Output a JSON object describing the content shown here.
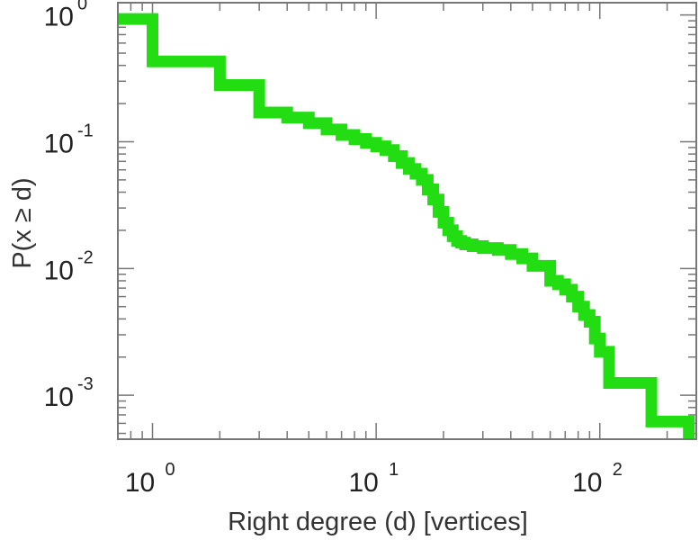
{
  "chart_data": {
    "type": "line",
    "step": true,
    "xscale": "log",
    "yscale": "log",
    "xlabel": "Right degree (d) [vertices]",
    "ylabel": "P(x ≥ d)",
    "xlim": [
      0.7,
      270
    ],
    "ylim": [
      0.00045,
      1.25
    ],
    "grid": false,
    "legend": "none",
    "color": "#22dd11",
    "x_ticks": [
      {
        "value": 1,
        "base": "10",
        "exp": "0"
      },
      {
        "value": 10,
        "base": "10",
        "exp": "1"
      },
      {
        "value": 100,
        "base": "10",
        "exp": "2"
      }
    ],
    "y_ticks": [
      {
        "value": 1,
        "base": "10",
        "exp": "0"
      },
      {
        "value": 0.1,
        "base": "10",
        "exp": "-1"
      },
      {
        "value": 0.01,
        "base": "10",
        "exp": "-2"
      },
      {
        "value": 0.001,
        "base": "10",
        "exp": "-3"
      }
    ],
    "series": [
      {
        "x": [
          0.7,
          1,
          2,
          3,
          4,
          5,
          6,
          7,
          8,
          9,
          10,
          11,
          12,
          13,
          14,
          15,
          16,
          17,
          18,
          19,
          20,
          21,
          22,
          23,
          24,
          25,
          27,
          30,
          35,
          40,
          45,
          50,
          60,
          65,
          70,
          75,
          80,
          85,
          90,
          95,
          100,
          110,
          170,
          250
        ],
        "y": [
          0.93,
          0.43,
          0.28,
          0.17,
          0.155,
          0.14,
          0.125,
          0.113,
          0.105,
          0.098,
          0.092,
          0.086,
          0.077,
          0.068,
          0.061,
          0.056,
          0.05,
          0.042,
          0.035,
          0.028,
          0.023,
          0.02,
          0.018,
          0.0165,
          0.016,
          0.0155,
          0.015,
          0.0145,
          0.014,
          0.013,
          0.012,
          0.0105,
          0.008,
          0.0075,
          0.0068,
          0.006,
          0.005,
          0.0043,
          0.0038,
          0.0028,
          0.0022,
          0.00125,
          0.00062,
          0.00045
        ]
      }
    ]
  }
}
